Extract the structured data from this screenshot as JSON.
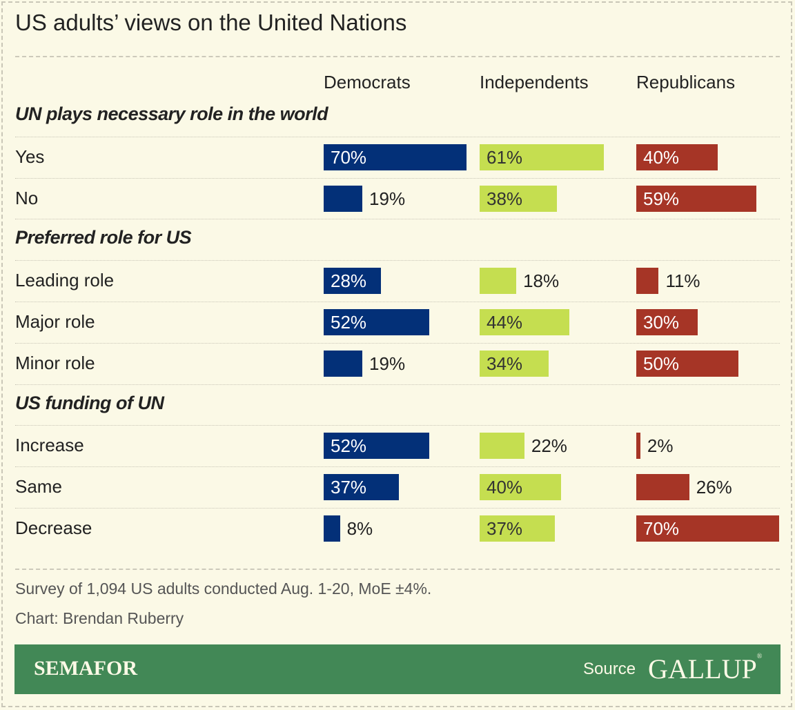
{
  "title": "US adults’ views on the United Nations",
  "colors": {
    "Democrats": "#033078",
    "Independents": "#c5de50",
    "Republicans": "#a63526"
  },
  "chart_data": {
    "type": "bar",
    "title": "US adults’ views on the United Nations",
    "series_names": [
      "Democrats",
      "Independents",
      "Republicans"
    ],
    "sections": [
      {
        "heading": "UN plays necessary role in the world",
        "rows": [
          {
            "label": "Yes",
            "values": [
              70,
              61,
              40
            ]
          },
          {
            "label": "No",
            "values": [
              19,
              38,
              59
            ]
          }
        ]
      },
      {
        "heading": "Preferred role for US",
        "rows": [
          {
            "label": "Leading role",
            "values": [
              28,
              18,
              11
            ]
          },
          {
            "label": "Major role",
            "values": [
              52,
              44,
              30
            ]
          },
          {
            "label": "Minor role",
            "values": [
              19,
              34,
              50
            ]
          }
        ]
      },
      {
        "heading": "US funding of UN",
        "rows": [
          {
            "label": "Increase",
            "values": [
              52,
              22,
              2
            ]
          },
          {
            "label": "Same",
            "values": [
              37,
              40,
              26
            ]
          },
          {
            "label": "Decrease",
            "values": [
              8,
              37,
              70
            ]
          }
        ]
      }
    ],
    "unit": "%"
  },
  "footer": {
    "note": "Survey of 1,094 US adults conducted Aug. 1-20, MoE ±4%.",
    "credit": "Chart: Brendan Ruberry",
    "brand": "SEMAFOR",
    "source_label": "Source",
    "source_name": "GALLUP",
    "source_mark": "®"
  }
}
